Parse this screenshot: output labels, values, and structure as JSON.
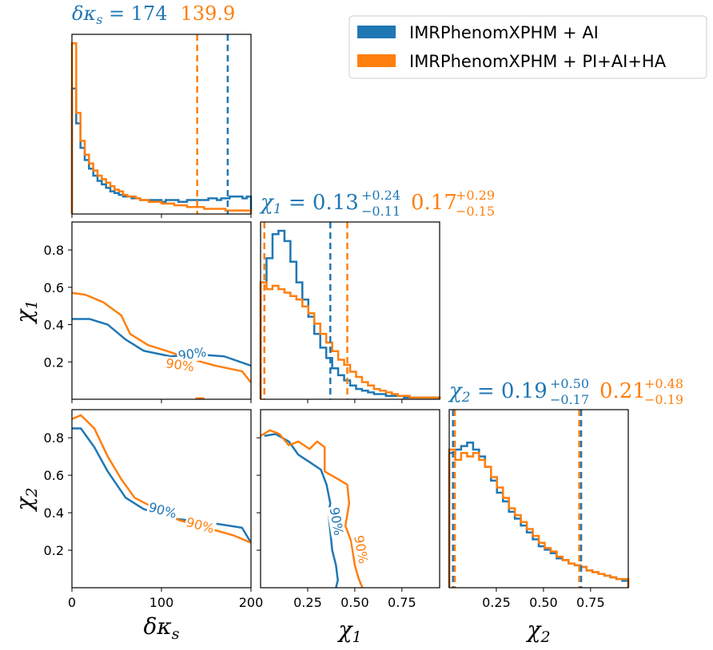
{
  "colors": {
    "blue": "#1f77b4",
    "orange": "#ff7f0e",
    "axis": "#000000"
  },
  "legend": {
    "entries": [
      {
        "label": "IMRPhenomXPHM + AI",
        "color": "#1f77b4"
      },
      {
        "label": "IMRPhenomXPHM + PI+AI+HA",
        "color": "#ff7f0e"
      }
    ]
  },
  "titles": {
    "dks": {
      "param": "δκ",
      "sub": "s",
      "eq": " = ",
      "blue": "174",
      "orange": "139.9"
    },
    "chi1": {
      "param": "χ",
      "sub": "1",
      "eq": " = ",
      "blue": {
        "val": "0.13",
        "plus": "+0.24",
        "minus": "−0.11"
      },
      "orange": {
        "val": "0.17",
        "plus": "+0.29",
        "minus": "−0.15"
      }
    },
    "chi2": {
      "param": "χ",
      "sub": "2",
      "eq": " = ",
      "blue": {
        "val": "0.19",
        "plus": "+0.50",
        "minus": "−0.17"
      },
      "orange": {
        "val": "0.21",
        "plus": "+0.48",
        "minus": "−0.19"
      }
    }
  },
  "axes": {
    "xlabels": [
      {
        "param": "δκ",
        "sub": "s"
      },
      {
        "param": "χ",
        "sub": "1"
      },
      {
        "param": "χ",
        "sub": "2"
      }
    ],
    "ylabels": [
      {
        "param": "χ",
        "sub": "1"
      },
      {
        "param": "χ",
        "sub": "2"
      }
    ],
    "dks_ticks": [
      "0",
      "100",
      "200"
    ],
    "chi1_xticks": [
      "0.25",
      "0.50",
      "0.75"
    ],
    "chi2_xticks": [
      "0.25",
      "0.50",
      "0.75"
    ],
    "y_chi1_ticks": [
      "0.2",
      "0.4",
      "0.6",
      "0.8"
    ],
    "y_chi2_ticks": [
      "0.2",
      "0.4",
      "0.6",
      "0.8"
    ]
  },
  "contour_label": "90%",
  "chart_data": {
    "type": "corner",
    "parameters": [
      "δκ_s",
      "χ_1",
      "χ_2"
    ],
    "ranges": {
      "dks": [
        0,
        200
      ],
      "chi1": [
        0,
        0.95
      ],
      "chi2": [
        0,
        0.95
      ]
    },
    "series": [
      {
        "name": "IMRPhenomXPHM + AI",
        "color": "#1f77b4",
        "hist_dks": [
          0.72,
          0.52,
          0.38,
          0.31,
          0.26,
          0.22,
          0.19,
          0.17,
          0.15,
          0.13,
          0.12,
          0.11,
          0.1,
          0.1,
          0.09,
          0.09,
          0.08,
          0.08,
          0.08,
          0.08,
          0.08,
          0.07,
          0.08,
          0.08,
          0.08,
          0.07,
          0.07,
          0.08,
          0.08,
          0.08,
          0.08,
          0.08,
          0.09,
          0.09,
          0.08,
          0.09,
          0.09,
          0.1,
          0.1,
          0.1,
          0.09,
          0.1
        ],
        "hist_chi1": [
          0.68,
          0.82,
          0.96,
          0.98,
          0.92,
          0.8,
          0.68,
          0.58,
          0.48,
          0.38,
          0.3,
          0.24,
          0.18,
          0.14,
          0.11,
          0.08,
          0.06,
          0.05,
          0.04,
          0.03,
          0.03,
          0.02,
          0.02,
          0.02,
          0.01,
          0.01,
          0.01,
          0.01,
          0.01,
          0.01
        ],
        "hist_chi2": [
          0.78,
          0.8,
          0.82,
          0.84,
          0.8,
          0.76,
          0.7,
          0.62,
          0.55,
          0.5,
          0.44,
          0.4,
          0.36,
          0.32,
          0.28,
          0.24,
          0.22,
          0.2,
          0.17,
          0.16,
          0.14,
          0.13,
          0.12,
          0.1,
          0.09,
          0.08,
          0.07,
          0.06,
          0.05,
          0.04
        ],
        "quantiles": {
          "dks": 174,
          "chi1": 0.37,
          "chi2": 0.7
        },
        "contour_dks_chi1": [
          [
            0,
            0.43
          ],
          [
            20,
            0.43
          ],
          [
            40,
            0.4
          ],
          [
            60,
            0.32
          ],
          [
            80,
            0.26
          ],
          [
            110,
            0.23
          ],
          [
            140,
            0.24
          ],
          [
            170,
            0.23
          ],
          [
            200,
            0.18
          ]
        ],
        "contour_dks_chi2": [
          [
            0,
            0.85
          ],
          [
            10,
            0.85
          ],
          [
            25,
            0.75
          ],
          [
            40,
            0.62
          ],
          [
            60,
            0.48
          ],
          [
            80,
            0.42
          ],
          [
            110,
            0.37
          ],
          [
            150,
            0.35
          ],
          [
            190,
            0.32
          ],
          [
            200,
            0.24
          ]
        ],
        "contour_chi1_chi2": [
          [
            0.02,
            0.81
          ],
          [
            0.08,
            0.82
          ],
          [
            0.15,
            0.78
          ],
          [
            0.2,
            0.71
          ],
          [
            0.26,
            0.67
          ],
          [
            0.32,
            0.63
          ],
          [
            0.35,
            0.55
          ],
          [
            0.37,
            0.45
          ],
          [
            0.36,
            0.4
          ],
          [
            0.37,
            0.3
          ],
          [
            0.38,
            0.2
          ],
          [
            0.4,
            0.12
          ],
          [
            0.41,
            0.04
          ],
          [
            0.4,
            0.0
          ]
        ]
      },
      {
        "name": "IMRPhenomXPHM + PI+AI+HA",
        "color": "#ff7f0e",
        "hist_dks": [
          0.98,
          0.58,
          0.42,
          0.34,
          0.29,
          0.25,
          0.22,
          0.2,
          0.18,
          0.16,
          0.14,
          0.13,
          0.11,
          0.1,
          0.1,
          0.09,
          0.08,
          0.08,
          0.07,
          0.07,
          0.07,
          0.06,
          0.06,
          0.06,
          0.05,
          0.05,
          0.05,
          0.04,
          0.04,
          0.04,
          0.04,
          0.03,
          0.03,
          0.03,
          0.03,
          0.03,
          0.02,
          0.02,
          0.02,
          0.02,
          0.02,
          0.02
        ],
        "hist_chi1": [
          0.68,
          0.64,
          0.66,
          0.64,
          0.62,
          0.6,
          0.58,
          0.54,
          0.5,
          0.44,
          0.38,
          0.33,
          0.28,
          0.23,
          0.2,
          0.16,
          0.13,
          0.1,
          0.08,
          0.06,
          0.05,
          0.04,
          0.03,
          0.02,
          0.02,
          0.01,
          0.01,
          0.01,
          0.01,
          0.01
        ],
        "hist_chi2": [
          0.8,
          0.74,
          0.78,
          0.76,
          0.78,
          0.74,
          0.7,
          0.64,
          0.58,
          0.52,
          0.46,
          0.42,
          0.38,
          0.34,
          0.3,
          0.26,
          0.23,
          0.21,
          0.18,
          0.16,
          0.14,
          0.13,
          0.12,
          0.1,
          0.09,
          0.08,
          0.07,
          0.06,
          0.05,
          0.05
        ],
        "quantiles": {
          "dks": 139.9,
          "chi1": 0.46,
          "chi2": 0.69
        },
        "contour_dks_chi1": [
          [
            0,
            0.57
          ],
          [
            15,
            0.56
          ],
          [
            35,
            0.52
          ],
          [
            55,
            0.45
          ],
          [
            65,
            0.35
          ],
          [
            85,
            0.29
          ],
          [
            105,
            0.26
          ],
          [
            130,
            0.22
          ],
          [
            160,
            0.18
          ],
          [
            190,
            0.15
          ],
          [
            200,
            0.09
          ]
        ],
        "contour_dks_chi2": [
          [
            0,
            0.9
          ],
          [
            10,
            0.92
          ],
          [
            25,
            0.85
          ],
          [
            40,
            0.7
          ],
          [
            55,
            0.58
          ],
          [
            70,
            0.48
          ],
          [
            90,
            0.43
          ],
          [
            120,
            0.36
          ],
          [
            150,
            0.32
          ],
          [
            180,
            0.28
          ],
          [
            200,
            0.24
          ]
        ],
        "contour_chi1_chi2": [
          [
            0.0,
            0.81
          ],
          [
            0.05,
            0.84
          ],
          [
            0.1,
            0.82
          ],
          [
            0.15,
            0.76
          ],
          [
            0.2,
            0.78
          ],
          [
            0.26,
            0.74
          ],
          [
            0.3,
            0.78
          ],
          [
            0.34,
            0.75
          ],
          [
            0.34,
            0.62
          ],
          [
            0.41,
            0.58
          ],
          [
            0.46,
            0.55
          ],
          [
            0.47,
            0.45
          ],
          [
            0.45,
            0.33
          ],
          [
            0.48,
            0.25
          ],
          [
            0.5,
            0.12
          ],
          [
            0.52,
            0.05
          ],
          [
            0.54,
            0.0
          ]
        ]
      }
    ]
  }
}
